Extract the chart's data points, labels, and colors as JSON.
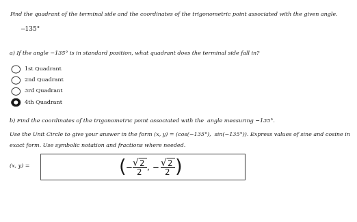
{
  "title": "Find the quadrant of the terminal side and the coordinates of the trigonometric point associated with the given angle.",
  "angle": "−135°",
  "part_a_label": "a) If the angle −135° is in standard position, what quadrant does the terminal side fall in?",
  "options": [
    "1st Quadrant",
    "2nd Quadrant",
    "3rd Quadrant",
    "4th Quadrant"
  ],
  "selected_option": 3,
  "part_b_label": "b) Find the coordinates of the trigonometric point associated with the  angle measuring −135°.",
  "instruction_line1": "Use the Unit Circle to give your answer in the form (x, y) = (cos(−135°),  sin(−135°)). Express values of sine and cosine in",
  "instruction_line2": "exact form. Use symbolic notation and fractions where needed.",
  "answer_label": "(x, y) =",
  "bg_color": "#ffffff",
  "text_color": "#1a1a1a",
  "radio_color": "#333333",
  "selected_fill_color": "#111111",
  "font_size_title": 5.8,
  "font_size_angle": 6.5,
  "font_size_body": 5.8,
  "font_size_options": 5.8,
  "font_size_answer": 8.5
}
